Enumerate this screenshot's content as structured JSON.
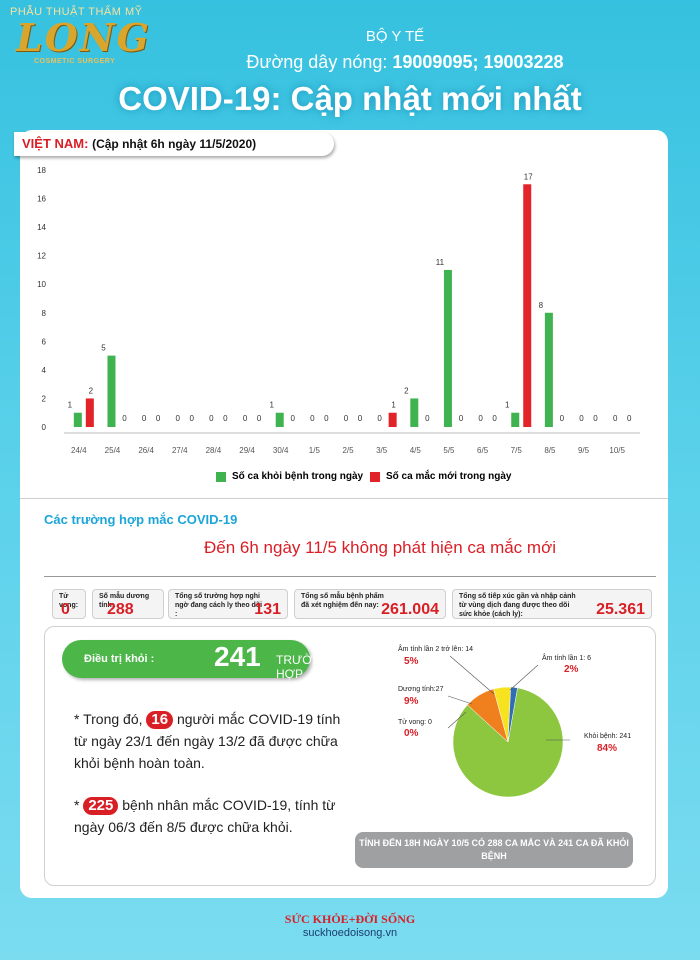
{
  "header": {
    "logo_top": "PHẪU THUẬT THẨM MỸ",
    "logo_brand": "LONG",
    "logo_sub": "COSMETIC SURGERY",
    "ministry": "BỘ Y TẾ",
    "hotline_label": "Đường dây nóng:",
    "hotline_numbers": "19009095; 19003228",
    "title": "COVID-19: Cập nhật mới nhất"
  },
  "update": {
    "country": "VIỆT NAM:",
    "time": "(Cập nhật 6h ngày 11/5/2020)"
  },
  "colors": {
    "recovered": "#3fb34f",
    "new_cases": "#e3232a",
    "brand_blue": "#1ba5d8"
  },
  "chart_data": {
    "type": "bar",
    "categories": [
      "24/4",
      "25/4",
      "26/4",
      "27/4",
      "28/4",
      "29/4",
      "30/4",
      "1/5",
      "2/5",
      "3/5",
      "4/5",
      "5/5",
      "6/5",
      "7/5",
      "8/5",
      "9/5",
      "10/5"
    ],
    "ylim": [
      0,
      18
    ],
    "yticks": [
      0,
      2,
      4,
      6,
      8,
      10,
      12,
      14,
      16,
      18
    ],
    "series": [
      {
        "name": "Số ca khỏi bệnh trong ngày",
        "color": "#3fb34f",
        "values": [
          1,
          5,
          0,
          0,
          0,
          0,
          1,
          0,
          0,
          0,
          2,
          11,
          0,
          1,
          8,
          0,
          0
        ]
      },
      {
        "name": "Số ca mắc mới trong ngày",
        "color": "#e3232a",
        "values": [
          2,
          0,
          0,
          0,
          0,
          0,
          0,
          0,
          0,
          1,
          0,
          0,
          0,
          17,
          0,
          0,
          0
        ]
      }
    ],
    "grid": false,
    "legend_position": "bottom"
  },
  "cases": {
    "section_title": "Các trường hợp mắc COVID-19",
    "announcement": "Đến 6h ngày 11/5 không phát hiện ca mắc mới"
  },
  "stats": [
    {
      "label": "Tử vong:",
      "value": "0"
    },
    {
      "label": "Số mẫu dương tính:",
      "value": "288"
    },
    {
      "label": "Tổng số trường hợp nghi ngờ đang cách ly theo dõi :",
      "value": "131"
    },
    {
      "label": "Tổng số mẫu bệnh phẩm đã xét nghiệm đến nay:",
      "value": "261.004"
    },
    {
      "label": "Tổng số tiếp xúc gần và nhập cảnh từ vùng dịch đang được theo dõi sức khỏe (cách ly):",
      "value": "25.361"
    }
  ],
  "recovered": {
    "label": "Điều trị khỏi :",
    "value": "241",
    "unit": "TRƯỜNG HỢP"
  },
  "notes": [
    {
      "prefix": "* Trong đó,",
      "badge": "16",
      "text": "người mắc COVID-19 tính từ ngày 23/1 đến ngày 13/2 đã được chữa khỏi bệnh hoàn toàn."
    },
    {
      "prefix": "*",
      "badge": "225",
      "text": "bệnh nhân  mắc COVID-19, tính từ ngày 06/3 đến 8/5 được chữa khỏi."
    }
  ],
  "pie": {
    "slices": [
      {
        "label": "Khỏi bệnh: 241",
        "pct": "84%",
        "value": 84,
        "color": "#8dc63f"
      },
      {
        "label": "Tử vong: 0",
        "pct": "0%",
        "value": 0,
        "color": "#d91f26"
      },
      {
        "label": "Dương tính:27",
        "pct": "9%",
        "value": 9,
        "color": "#f07f1e"
      },
      {
        "label": "Âm tính lần 2 trở lên: 14",
        "pct": "5%",
        "value": 5,
        "color": "#f6e21f"
      },
      {
        "label": "Âm tính lần 1: 6",
        "pct": "2%",
        "value": 2,
        "color": "#2f6db5"
      }
    ]
  },
  "bottom_note": "TÍNH ĐẾN 18H NGÀY 10/5 CÓ 288 CA MẮC VÀ 241 CA ĐÃ KHỎI BỆNH",
  "source": {
    "brand": "SỨC KHỎE+ĐỜI SỐNG",
    "url": "suckhoedoisong.vn"
  }
}
